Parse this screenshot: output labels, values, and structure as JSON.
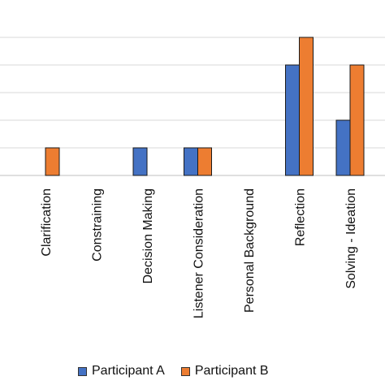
{
  "chart_data": {
    "type": "bar",
    "categories": [
      "Clarification",
      "Constraining",
      "Decision Making",
      "Listener Consideration",
      "Personal Background",
      "Reflection",
      "Solving - Ideation"
    ],
    "series": [
      {
        "name": "Participant A",
        "values": [
          0,
          0,
          1,
          1,
          0,
          4,
          2
        ],
        "color": "#4472C4"
      },
      {
        "name": "Participant B",
        "values": [
          1,
          0,
          0,
          1,
          0,
          5,
          4
        ],
        "color": "#ED7D31"
      }
    ],
    "ylim": [
      0,
      5
    ],
    "grid": true,
    "legend": "bottom"
  }
}
